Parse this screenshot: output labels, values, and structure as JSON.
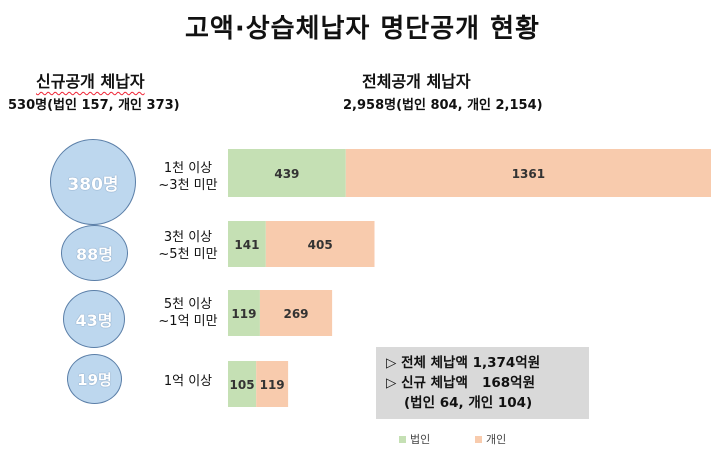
{
  "title": "고액·상습체납자 명단공개 현황",
  "new_disclosure": {
    "title": "신규공개 체납자",
    "subtitle": "530명(법인 157, 개인 373)"
  },
  "all_disclosure": {
    "title": "전체공개 체납자",
    "subtitle": "2,958명(법인 804, 개인 2,154)"
  },
  "bubbles": [
    {
      "label": "380명",
      "value": 380
    },
    {
      "label": "88명",
      "value": 88
    },
    {
      "label": "43명",
      "value": 43
    },
    {
      "label": "19명",
      "value": 19
    }
  ],
  "summary": {
    "line1": "▷ 전체 체납액 1,374억원",
    "line2": "▷ 신규 체납액   168억원",
    "line3": "(법인 64, 개인 104)"
  },
  "colors": {
    "corporate": "#c5e0b4",
    "individual": "#f8cbad",
    "bubble_fill": "#bdd7ee",
    "bubble_border": "#5b7fa8",
    "summary_bg": "#d9d9d9"
  },
  "chart_data": {
    "type": "bar",
    "orientation": "horizontal",
    "stacked": true,
    "categories": [
      "1천 이상\n~3천 미만",
      "3천 이상\n~5천 미만",
      "5천 이상\n~1억 미만",
      "1억 이상"
    ],
    "series": [
      {
        "name": "법인",
        "values": [
          439,
          141,
          119,
          105
        ]
      },
      {
        "name": "개인",
        "values": [
          1361,
          405,
          269,
          119
        ]
      }
    ],
    "legend": "bottom"
  }
}
